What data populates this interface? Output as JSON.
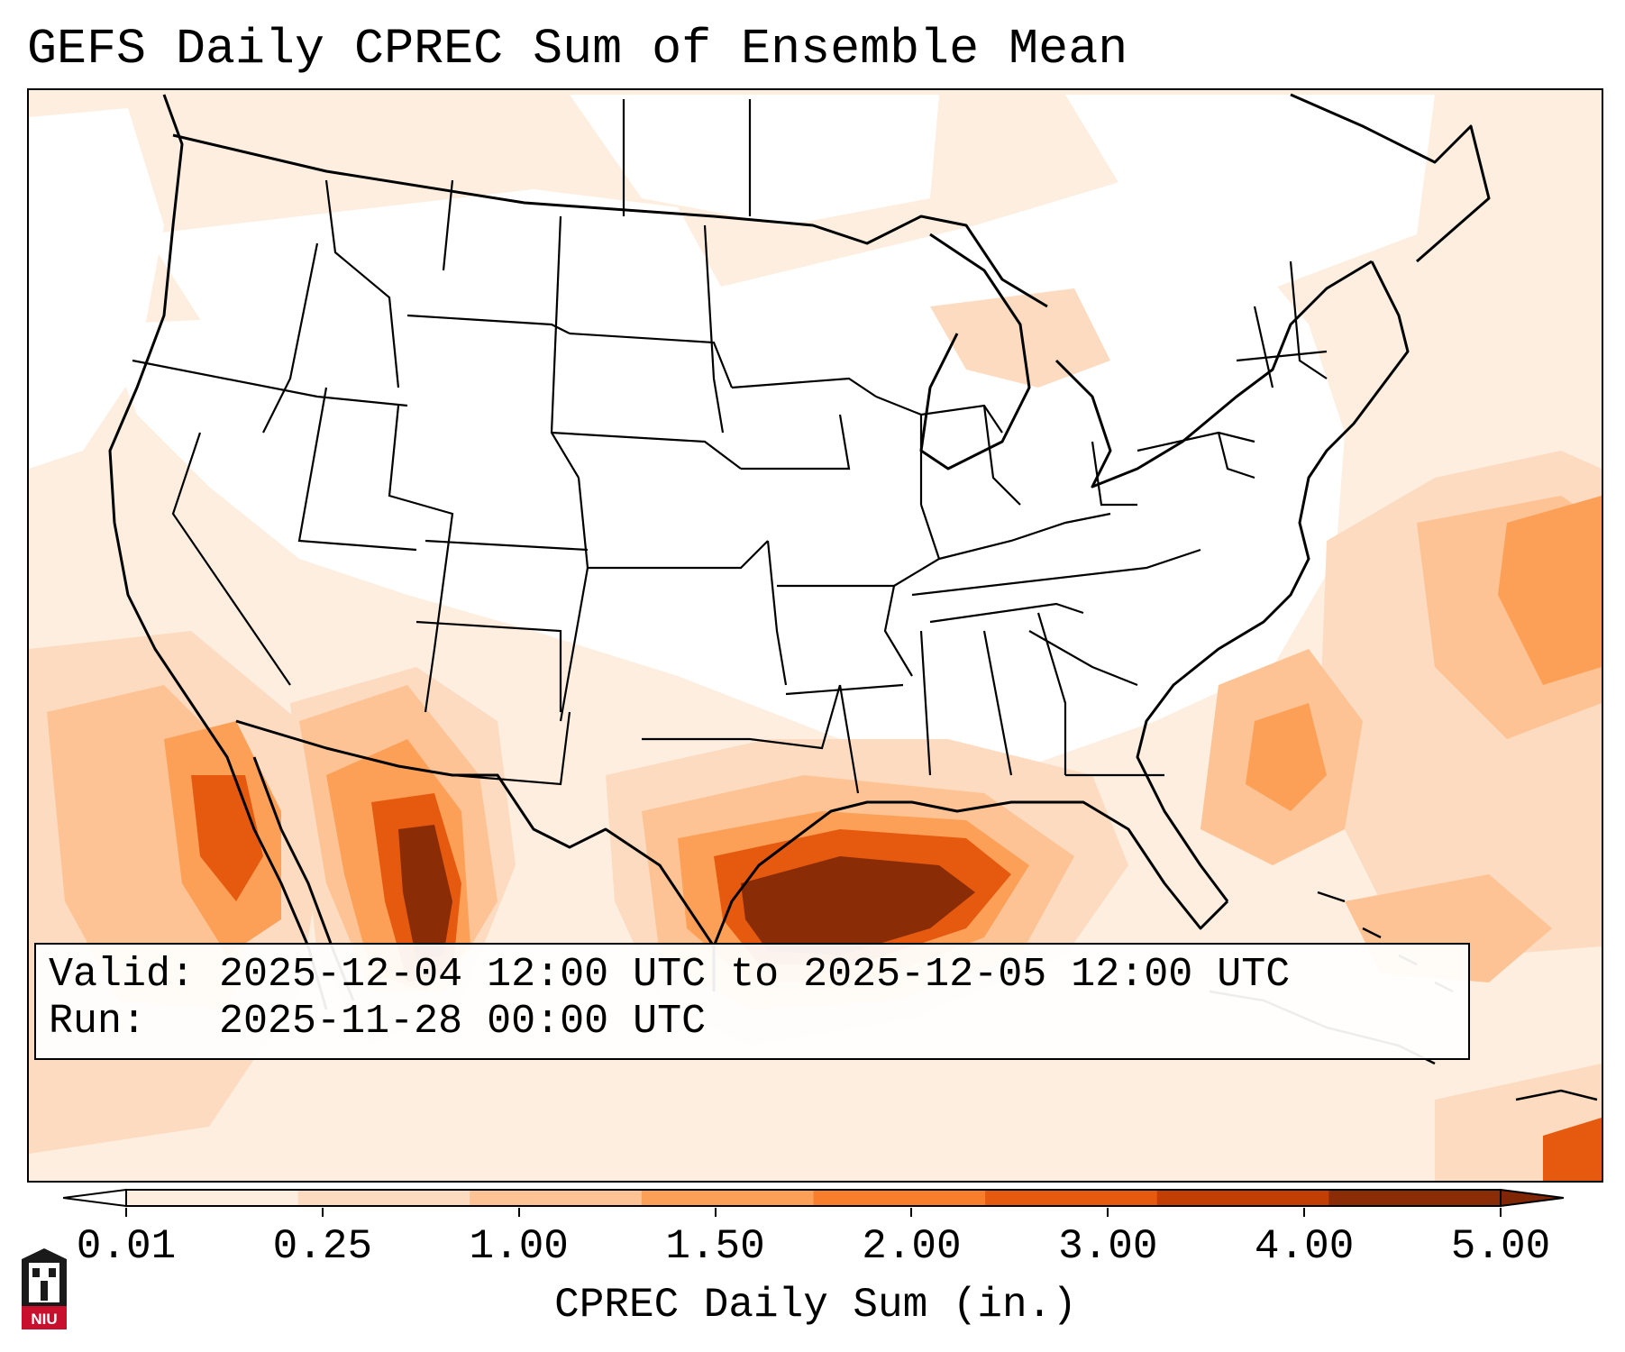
{
  "title": "GEFS Daily CPREC Sum of Ensemble Mean",
  "valid_label": "Valid:",
  "valid_value": "2025-12-04 12:00 UTC to 2025-12-05 12:00 UTC",
  "run_label": "Run:",
  "run_value": "2025-11-28 00:00 UTC",
  "colorbar": {
    "label": "CPREC Daily Sum (in.)",
    "ticks": [
      "0.01",
      "0.25",
      "1.00",
      "1.50",
      "2.00",
      "3.00",
      "4.00",
      "5.00"
    ],
    "colors": [
      "#fdeee0",
      "#fddbc0",
      "#fdc394",
      "#fca057",
      "#f97e2b",
      "#e55a0f",
      "#c23e03",
      "#8a2c05"
    ],
    "under_color": "#ffffff",
    "over_color": "#7f2704"
  },
  "logo": {
    "text": "NIU",
    "color": "#c8102e"
  },
  "map": {
    "background_color": "#fff5eb",
    "boundary_color": "#000000"
  }
}
